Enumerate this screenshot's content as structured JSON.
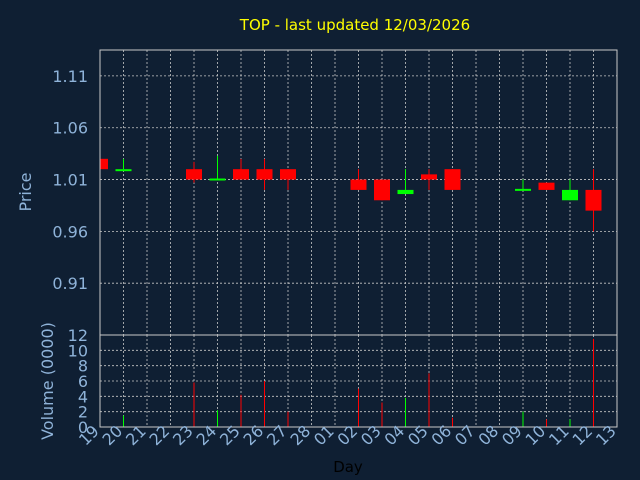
{
  "chart_data": {
    "type": "candlestick",
    "title": "TOP - last updated 12/03/2026",
    "xlabel": "Day",
    "price_panel": {
      "ylabel": "Price",
      "ylim": [
        0.86,
        1.135
      ],
      "yticks": [
        "1.11",
        "1.06",
        "1.01",
        "0.96",
        "0.91"
      ],
      "ytick_values": [
        1.11,
        1.06,
        1.01,
        0.96,
        0.91
      ]
    },
    "volume_panel": {
      "ylabel": "Volume (0000)",
      "ylim": [
        0,
        12
      ],
      "yticks": [
        "12",
        "10",
        "8",
        "6",
        "4",
        "2",
        "0"
      ],
      "ytick_values": [
        12,
        10,
        8,
        6,
        4,
        2,
        0
      ]
    },
    "x_tick_labels": [
      "19",
      "20",
      "21",
      "22",
      "23",
      "24",
      "25",
      "26",
      "27",
      "28",
      "01",
      "02",
      "03",
      "04",
      "05",
      "06",
      "07",
      "08",
      "09",
      "10",
      "11",
      "12",
      "13"
    ],
    "candles": [
      {
        "day": "19",
        "open": 1.03,
        "high": 1.03,
        "low": 1.02,
        "close": 1.02,
        "volume": 0
      },
      {
        "day": "20",
        "open": 1.02,
        "high": 1.03,
        "low": 1.02,
        "close": 1.02,
        "volume": 1.5
      },
      {
        "day": "23",
        "open": 1.02,
        "high": 1.027,
        "low": 1.007,
        "close": 1.01,
        "volume": 5.8
      },
      {
        "day": "24",
        "open": 1.01,
        "high": 1.033,
        "low": 1.01,
        "close": 1.011,
        "volume": 2.2
      },
      {
        "day": "25",
        "open": 1.02,
        "high": 1.03,
        "low": 1.01,
        "close": 1.01,
        "volume": 4.2
      },
      {
        "day": "26",
        "open": 1.02,
        "high": 1.03,
        "low": 1.0,
        "close": 1.01,
        "volume": 6.0
      },
      {
        "day": "27",
        "open": 1.02,
        "high": 1.02,
        "low": 1.0,
        "close": 1.01,
        "volume": 2.0
      },
      {
        "day": "02",
        "open": 1.01,
        "high": 1.02,
        "low": 1.0,
        "close": 1.0,
        "volume": 5.0
      },
      {
        "day": "03",
        "open": 1.01,
        "high": 1.01,
        "low": 0.99,
        "close": 0.99,
        "volume": 3.2
      },
      {
        "day": "04",
        "open": 0.996,
        "high": 1.02,
        "low": 0.996,
        "close": 1.0,
        "volume": 3.8
      },
      {
        "day": "05",
        "open": 1.015,
        "high": 1.02,
        "low": 1.0,
        "close": 1.01,
        "volume": 7.0
      },
      {
        "day": "06",
        "open": 1.02,
        "high": 1.02,
        "low": 1.0,
        "close": 1.0,
        "volume": 1.2
      },
      {
        "day": "09",
        "open": 1.0,
        "high": 1.01,
        "low": 1.0,
        "close": 1.001,
        "volume": 2.0
      },
      {
        "day": "10",
        "open": 1.007,
        "high": 1.007,
        "low": 1.0,
        "close": 1.0,
        "volume": 1.0
      },
      {
        "day": "11",
        "open": 0.99,
        "high": 1.01,
        "low": 0.99,
        "close": 1.0,
        "volume": 1.0
      },
      {
        "day": "12",
        "open": 1.0,
        "high": 1.02,
        "low": 0.96,
        "close": 0.98,
        "volume": 11.5
      }
    ],
    "grid": true,
    "colors": {
      "background": "#0f1f33",
      "title": "#ffff00",
      "axis_text": "#8fb3d9",
      "grid": "#c8c8c8",
      "frame": "#c8c8c8",
      "up": "#00ff00",
      "down": "#ff0000"
    }
  }
}
